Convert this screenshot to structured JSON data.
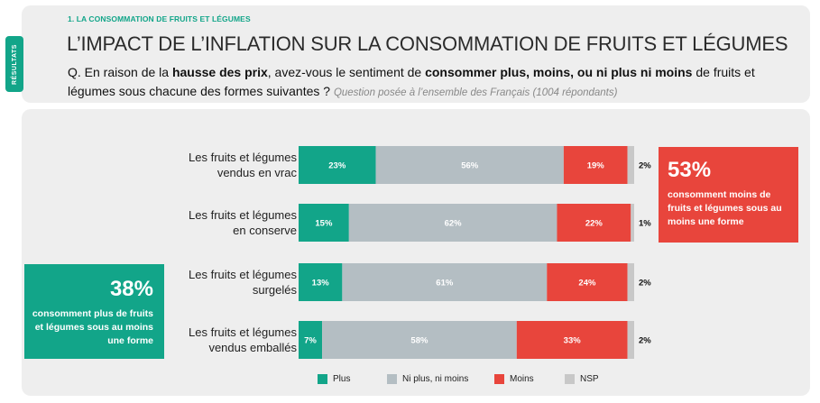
{
  "side_tab": "RÉSULTATS",
  "section_label": "1. LA CONSOMMATION DE FRUITS ET LÉGUMES",
  "title": "L’IMPACT DE L’INFLATION SUR LA CONSOMMATION DE FRUITS ET LÉGUMES",
  "question": {
    "p1": "Q. En raison de la ",
    "b1": "hausse des prix",
    "p2": ", avez-vous le sentiment de ",
    "b2": "consommer plus, moins, ou ni plus ni moins",
    "p3": " de fruits et légumes sous chacune des formes suivantes ? ",
    "note": "Question posée à l’ensemble des Français (1004 répondants)"
  },
  "callout_left": {
    "pct": "38%",
    "text": "consomment plus de fruits et légumes sous au moins une forme"
  },
  "callout_right": {
    "pct": "53%",
    "text": "consomment moins de fruits et légumes sous au moins une forme"
  },
  "colors": {
    "plus": "#12a589",
    "ni": "#b4bec3",
    "moins": "#e8453c",
    "nsp": "#c8c8c8"
  },
  "chart_data": {
    "type": "bar",
    "orientation": "horizontal",
    "stacked": true,
    "categories": [
      "Les fruits et légumes vendus en vrac",
      "Les fruits et légumes en conserve",
      "Les fruits et légumes surgelés",
      "Les fruits et légumes vendus emballés"
    ],
    "category_lines": [
      [
        "Les fruits et légumes",
        "vendus en vrac"
      ],
      [
        "Les fruits et légumes",
        "en conserve"
      ],
      [
        "Les fruits et légumes",
        "surgelés"
      ],
      [
        "Les fruits et légumes",
        "vendus emballés"
      ]
    ],
    "series": [
      {
        "name": "Plus",
        "values": [
          23,
          15,
          13,
          7
        ]
      },
      {
        "name": "Ni plus, ni moins",
        "values": [
          56,
          62,
          61,
          58
        ]
      },
      {
        "name": "Moins",
        "values": [
          19,
          22,
          24,
          33
        ]
      },
      {
        "name": "NSP",
        "values": [
          2,
          1,
          2,
          2
        ]
      }
    ],
    "unit": "%",
    "legend": "bottom"
  }
}
